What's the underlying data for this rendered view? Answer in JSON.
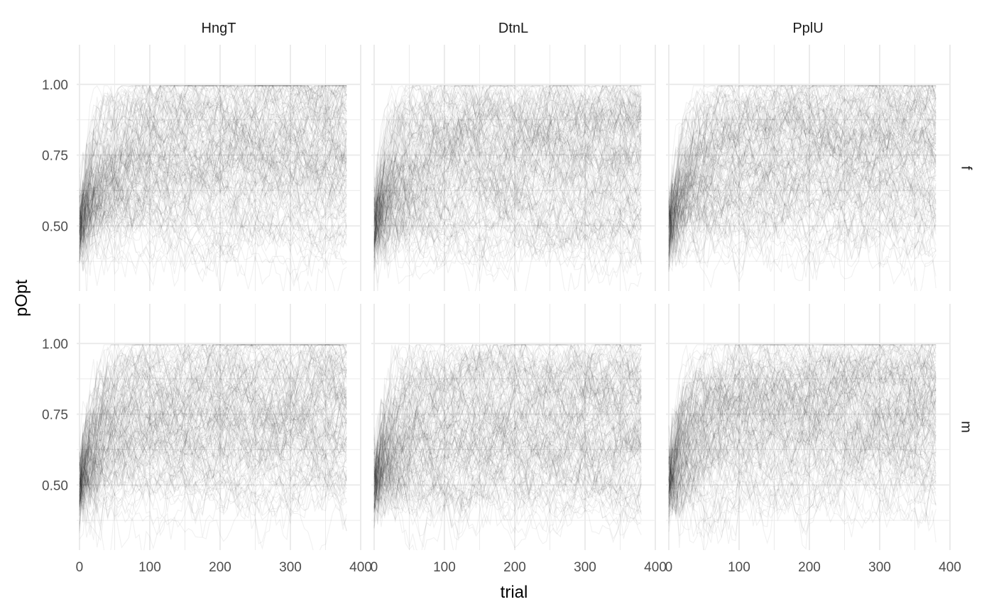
{
  "chart_data": {
    "type": "line",
    "title": "",
    "xlabel": "trial",
    "ylabel": "pOpt",
    "col_facets": [
      "HngT",
      "DtnL",
      "PplU"
    ],
    "row_facets": [
      "f",
      "m"
    ],
    "xlim": [
      -4,
      400
    ],
    "ylim": [
      0.27,
      1.14
    ],
    "x_ticks": [
      0,
      100,
      200,
      300,
      400
    ],
    "x_tick_labels": [
      "0",
      "100",
      "200",
      "300",
      "400"
    ],
    "y_ticks": [
      0.5,
      0.75,
      1.0
    ],
    "y_tick_labels": [
      "0.50",
      "0.75",
      "1.00"
    ],
    "grid": true,
    "legend": "none",
    "series_color": "#000000",
    "series_opacity": 0.06,
    "trials": 380,
    "subjects_per_panel": 150,
    "panel_summary": [
      {
        "row": "f",
        "col": "HngT",
        "start": 0.5,
        "plateau_range": [
          0.42,
          0.98
        ],
        "median_plateau": 0.78
      },
      {
        "row": "f",
        "col": "DtnL",
        "start": 0.5,
        "plateau_range": [
          0.4,
          0.97
        ],
        "median_plateau": 0.76
      },
      {
        "row": "f",
        "col": "PplU",
        "start": 0.5,
        "plateau_range": [
          0.42,
          0.97
        ],
        "median_plateau": 0.76
      },
      {
        "row": "m",
        "col": "HngT",
        "start": 0.5,
        "plateau_range": [
          0.45,
          0.98
        ],
        "median_plateau": 0.78
      },
      {
        "row": "m",
        "col": "DtnL",
        "start": 0.5,
        "plateau_range": [
          0.4,
          0.97
        ],
        "median_plateau": 0.78
      },
      {
        "row": "m",
        "col": "PplU",
        "start": 0.5,
        "plateau_range": [
          0.42,
          0.97
        ],
        "median_plateau": 0.78
      }
    ]
  }
}
